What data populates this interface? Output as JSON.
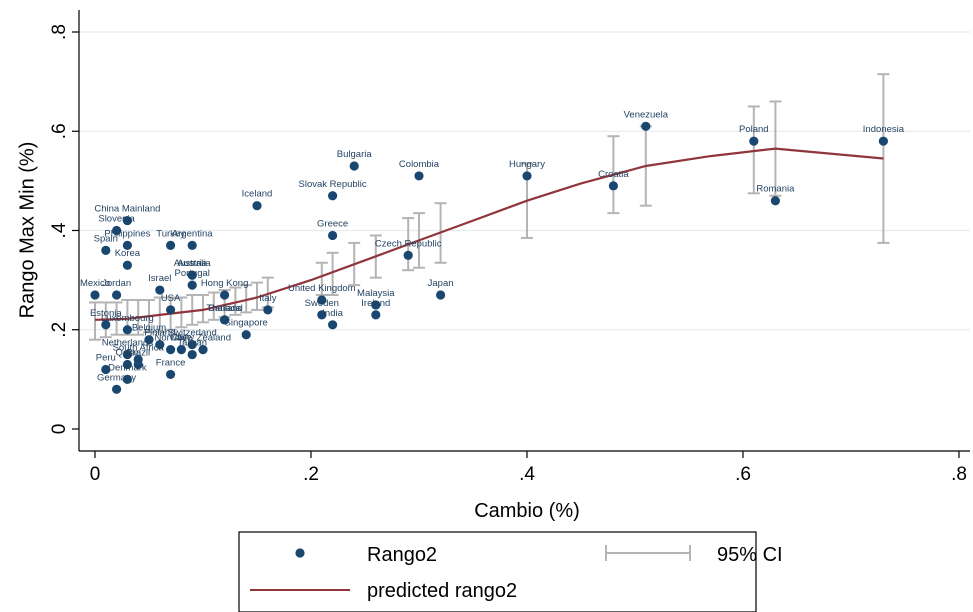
{
  "chart_data": {
    "type": "scatter",
    "xlabel": "Cambio (%)",
    "ylabel": "Rango Max Min (%)",
    "xlim": [
      0,
      0.8
    ],
    "ylim": [
      0,
      0.8
    ],
    "x_ticks": [
      {
        "value": 0,
        "label": "0"
      },
      {
        "value": 0.2,
        "label": ".2"
      },
      {
        "value": 0.4,
        "label": ".4"
      },
      {
        "value": 0.6,
        "label": ".6"
      },
      {
        "value": 0.8,
        "label": ".8"
      }
    ],
    "y_ticks": [
      {
        "value": 0,
        "label": "0"
      },
      {
        "value": 0.2,
        "label": ".2"
      },
      {
        "value": 0.4,
        "label": ".4"
      },
      {
        "value": 0.6,
        "label": ".6"
      },
      {
        "value": 0.8,
        "label": ".8"
      }
    ],
    "grid": "horizontal",
    "colors": {
      "points": "#1a476f",
      "fit": "#90353b",
      "ci": "#b4b4b4"
    },
    "series": [
      {
        "name": "Rango2",
        "kind": "scatter",
        "points": [
          {
            "label": "Venezuela",
            "x": 0.51,
            "y": 0.61
          },
          {
            "label": "Poland",
            "x": 0.61,
            "y": 0.58
          },
          {
            "label": "Indonesia",
            "x": 0.73,
            "y": 0.58
          },
          {
            "label": "Romania",
            "x": 0.63,
            "y": 0.46
          },
          {
            "label": "Croatia",
            "x": 0.48,
            "y": 0.49
          },
          {
            "label": "Hungary",
            "x": 0.4,
            "y": 0.51
          },
          {
            "label": "Colombia",
            "x": 0.3,
            "y": 0.51
          },
          {
            "label": "Bulgaria",
            "x": 0.24,
            "y": 0.53
          },
          {
            "label": "Slovak Republic",
            "x": 0.22,
            "y": 0.47
          },
          {
            "label": "Iceland",
            "x": 0.15,
            "y": 0.45
          },
          {
            "label": "Greece",
            "x": 0.22,
            "y": 0.39
          },
          {
            "label": "Czech Republic",
            "x": 0.29,
            "y": 0.35
          },
          {
            "label": "Japan",
            "x": 0.32,
            "y": 0.27
          },
          {
            "label": "United Kingdom",
            "x": 0.21,
            "y": 0.26
          },
          {
            "label": "Malaysia",
            "x": 0.26,
            "y": 0.25
          },
          {
            "label": "Sweden",
            "x": 0.21,
            "y": 0.23
          },
          {
            "label": "Ireland",
            "x": 0.26,
            "y": 0.23
          },
          {
            "label": "India",
            "x": 0.22,
            "y": 0.21
          },
          {
            "label": "Italy",
            "x": 0.16,
            "y": 0.24
          },
          {
            "label": "Hong Kong",
            "x": 0.12,
            "y": 0.27
          },
          {
            "label": "Canada",
            "x": 0.12,
            "y": 0.22
          },
          {
            "label": "Thailand",
            "x": 0.12,
            "y": 0.22
          },
          {
            "label": "Singapore",
            "x": 0.14,
            "y": 0.19
          },
          {
            "label": "China Mainland",
            "x": 0.03,
            "y": 0.42
          },
          {
            "label": "Slovenia",
            "x": 0.02,
            "y": 0.4
          },
          {
            "label": "Philippines",
            "x": 0.03,
            "y": 0.37
          },
          {
            "label": "Turkey",
            "x": 0.07,
            "y": 0.37
          },
          {
            "label": "Argentina",
            "x": 0.09,
            "y": 0.37
          },
          {
            "label": "Spain",
            "x": 0.01,
            "y": 0.36
          },
          {
            "label": "Korea",
            "x": 0.03,
            "y": 0.33
          },
          {
            "label": "Austria",
            "x": 0.09,
            "y": 0.31
          },
          {
            "label": "Australia",
            "x": 0.09,
            "y": 0.31
          },
          {
            "label": "Portugal",
            "x": 0.09,
            "y": 0.29
          },
          {
            "label": "Israel",
            "x": 0.06,
            "y": 0.28
          },
          {
            "label": "Mexico",
            "x": 0.0,
            "y": 0.27
          },
          {
            "label": "Jordan",
            "x": 0.02,
            "y": 0.27
          },
          {
            "label": "USA",
            "x": 0.07,
            "y": 0.24
          },
          {
            "label": "Estonia",
            "x": 0.01,
            "y": 0.21
          },
          {
            "label": "Luxembourg",
            "x": 0.03,
            "y": 0.2
          },
          {
            "label": "Belgium",
            "x": 0.05,
            "y": 0.18
          },
          {
            "label": "Finland",
            "x": 0.06,
            "y": 0.17
          },
          {
            "label": "Norway",
            "x": 0.07,
            "y": 0.16
          },
          {
            "label": "Switzerland",
            "x": 0.09,
            "y": 0.17
          },
          {
            "label": "New Zealand",
            "x": 0.1,
            "y": 0.16
          },
          {
            "label": "Netherlands",
            "x": 0.03,
            "y": 0.15
          },
          {
            "label": "South Africa",
            "x": 0.04,
            "y": 0.14
          },
          {
            "label": "Chile",
            "x": 0.08,
            "y": 0.16
          },
          {
            "label": "Taiwan",
            "x": 0.09,
            "y": 0.15
          },
          {
            "label": "Qatar",
            "x": 0.03,
            "y": 0.13
          },
          {
            "label": "Brazil",
            "x": 0.04,
            "y": 0.13
          },
          {
            "label": "Peru",
            "x": 0.01,
            "y": 0.12
          },
          {
            "label": "Denmark",
            "x": 0.03,
            "y": 0.1
          },
          {
            "label": "France",
            "x": 0.07,
            "y": 0.11
          },
          {
            "label": "Germany",
            "x": 0.02,
            "y": 0.08
          }
        ]
      },
      {
        "name": "predicted rango2",
        "kind": "line",
        "x": [
          0,
          0.03,
          0.06,
          0.1,
          0.15,
          0.2,
          0.25,
          0.3,
          0.35,
          0.4,
          0.45,
          0.51,
          0.57,
          0.63,
          0.73
        ],
        "y": [
          0.22,
          0.222,
          0.23,
          0.24,
          0.265,
          0.3,
          0.34,
          0.38,
          0.42,
          0.46,
          0.495,
          0.53,
          0.55,
          0.565,
          0.545
        ]
      },
      {
        "name": "95% CI",
        "kind": "errorbar",
        "x": [
          0.0,
          0.01,
          0.02,
          0.03,
          0.04,
          0.05,
          0.06,
          0.07,
          0.08,
          0.09,
          0.1,
          0.11,
          0.12,
          0.13,
          0.14,
          0.15,
          0.16,
          0.21,
          0.22,
          0.24,
          0.26,
          0.29,
          0.3,
          0.32,
          0.4,
          0.48,
          0.51,
          0.61,
          0.63,
          0.73
        ],
        "lower": [
          0.18,
          0.185,
          0.19,
          0.19,
          0.19,
          0.195,
          0.195,
          0.2,
          0.205,
          0.21,
          0.215,
          0.22,
          0.225,
          0.23,
          0.235,
          0.24,
          0.245,
          0.27,
          0.27,
          0.29,
          0.305,
          0.32,
          0.325,
          0.335,
          0.385,
          0.435,
          0.45,
          0.475,
          0.47,
          0.375
        ],
        "upper": [
          0.255,
          0.255,
          0.255,
          0.26,
          0.26,
          0.26,
          0.265,
          0.265,
          0.265,
          0.27,
          0.27,
          0.275,
          0.28,
          0.285,
          0.29,
          0.295,
          0.305,
          0.335,
          0.355,
          0.375,
          0.39,
          0.425,
          0.435,
          0.455,
          0.535,
          0.59,
          0.61,
          0.65,
          0.66,
          0.715
        ]
      }
    ],
    "legend": {
      "placement": "bottom",
      "entries": [
        {
          "label": "Rango2",
          "kind": "marker"
        },
        {
          "label": "95% CI",
          "kind": "errorbar"
        },
        {
          "label": "predicted rango2",
          "kind": "line"
        }
      ]
    }
  }
}
